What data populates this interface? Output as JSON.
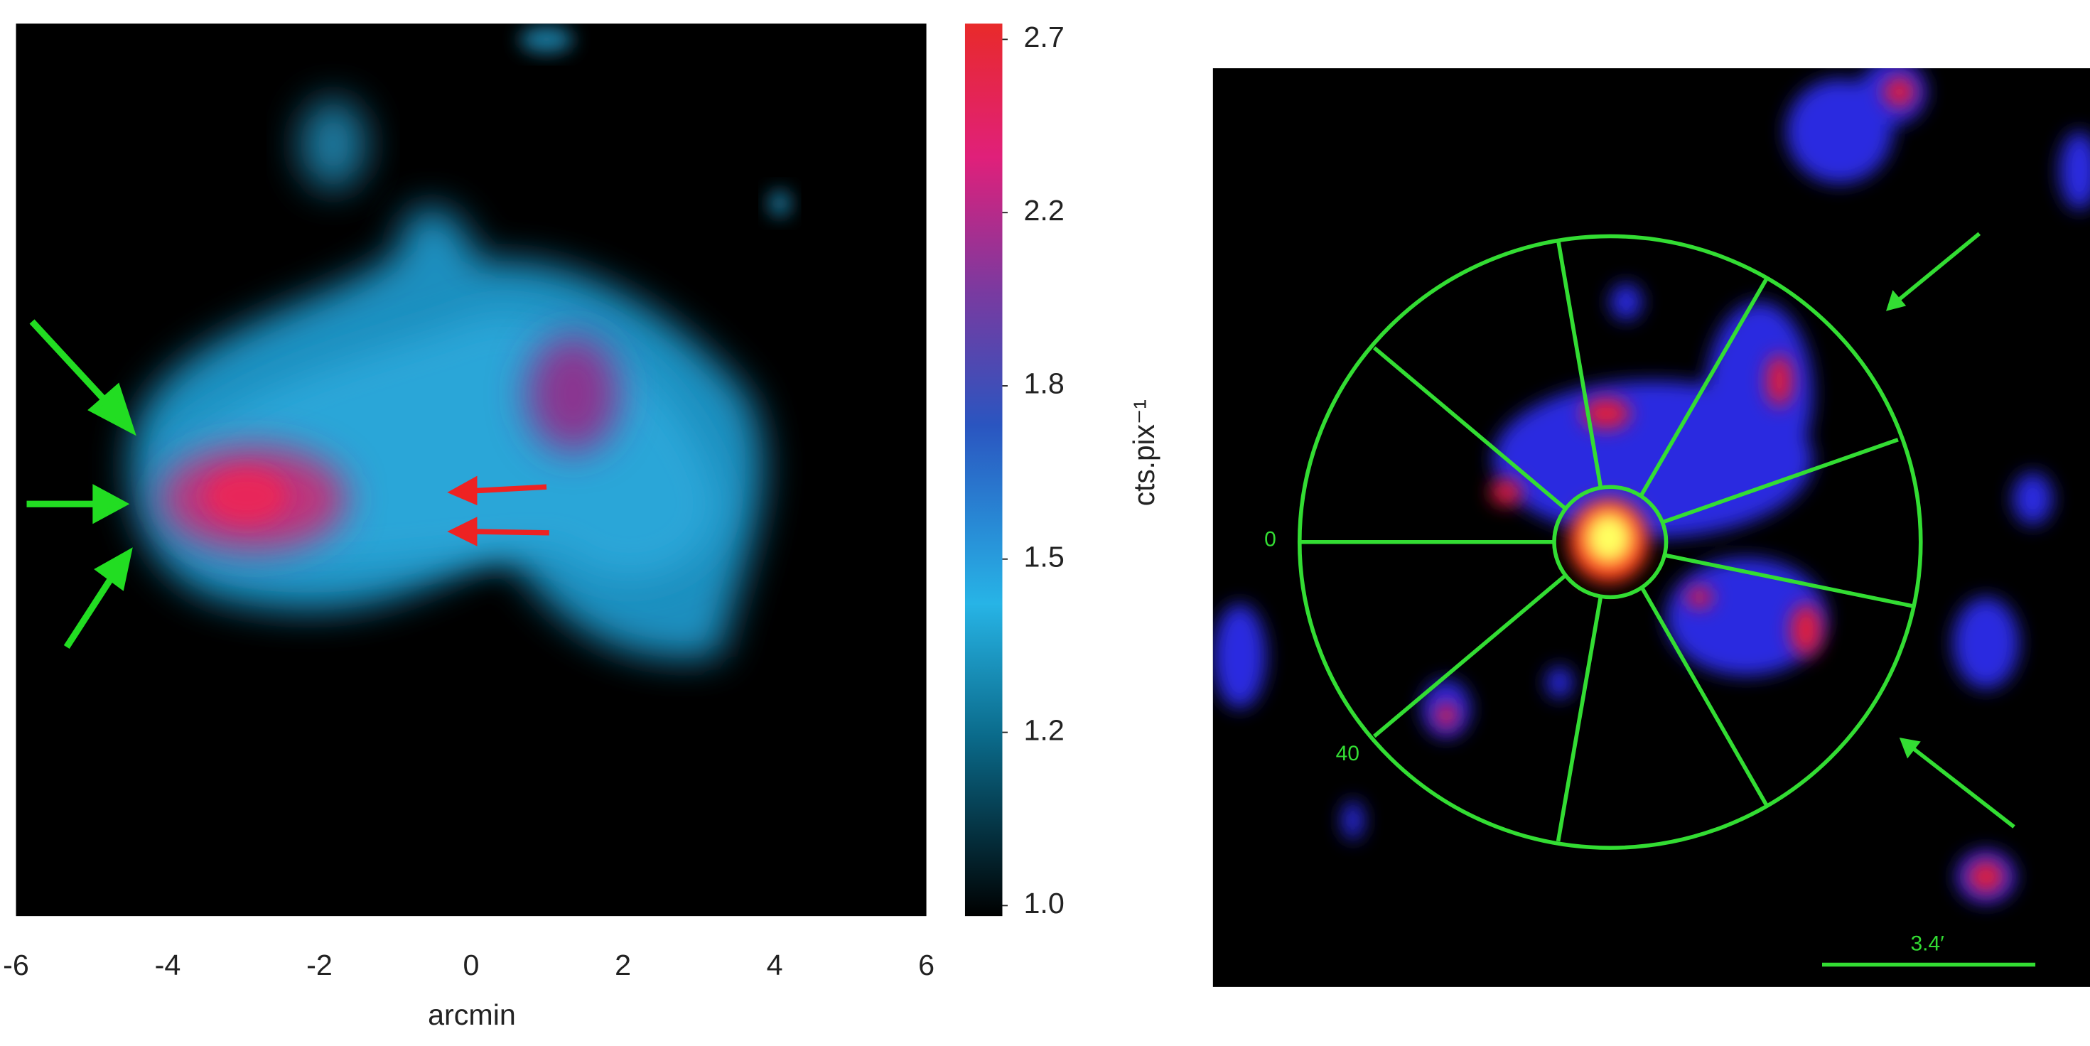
{
  "chart_data": [
    {
      "type": "heatmap",
      "xlabel": "arcmin",
      "xlim": [
        -6,
        6
      ],
      "xticks": [
        -6,
        -4,
        -2,
        0,
        2,
        4,
        6
      ],
      "colorbar": {
        "label": "cts.pix⁻¹",
        "ticks": [
          {
            "value": 1,
            "label": "1.0"
          },
          1.2,
          1.5,
          1.8,
          2.2,
          2.7
        ]
      }
    },
    {
      "type": "image",
      "annotations": [
        "0",
        "40",
        "3.4′"
      ]
    }
  ]
}
